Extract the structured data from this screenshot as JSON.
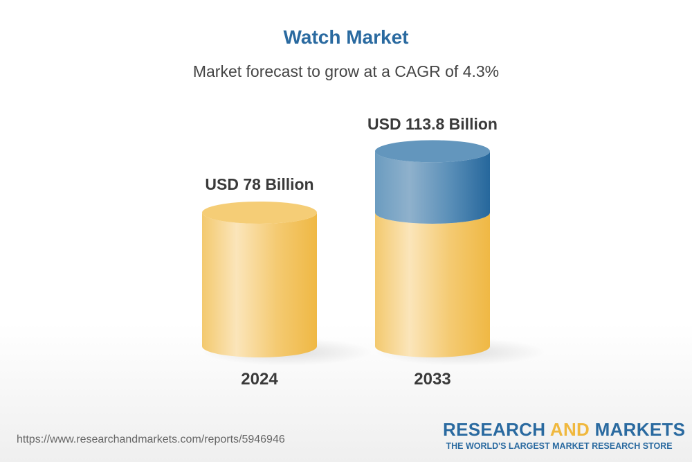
{
  "chart_data": {
    "type": "bar",
    "style": "3d-cylinder",
    "title": "Watch Market",
    "subtitle": "Market forecast to grow at a CAGR of 4.3%",
    "categories": [
      "2024",
      "2033"
    ],
    "values": [
      78,
      113.8
    ],
    "unit": "USD Billion",
    "data_labels": [
      "USD 78 Billion",
      "USD 113.8 Billion"
    ],
    "colors": {
      "base": "#f2c35a",
      "growth": "#2a6aa0",
      "title": "#2a6aa0"
    },
    "grid": false
  },
  "footer": {
    "url": "https://www.researchandmarkets.com/reports/5946946",
    "logo_part1": "RESEARCH ",
    "logo_part2": "AND",
    "logo_part3": " MARKETS",
    "tagline": "THE WORLD'S LARGEST MARKET RESEARCH STORE"
  }
}
